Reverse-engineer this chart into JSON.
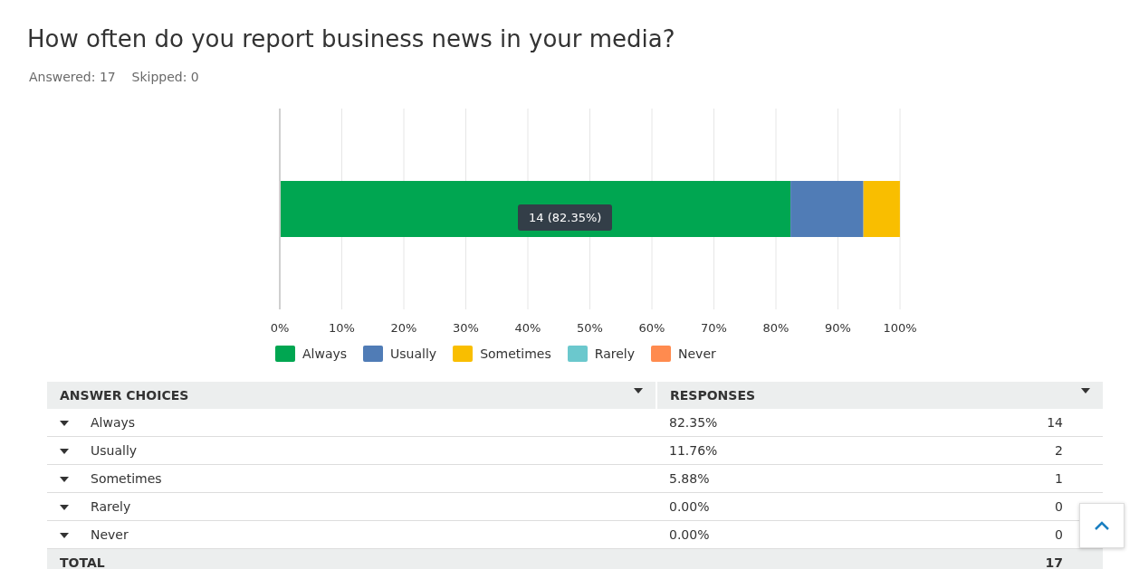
{
  "chart_data": {
    "type": "bar",
    "orientation": "horizontal",
    "stacked": true,
    "title": "How often do you report business news in your media?",
    "subtitle": "Answered: 17    Skipped: 0",
    "categories": [
      null
    ],
    "series": [
      {
        "name": "Always",
        "color": "#00a651",
        "values": [
          82.35
        ]
      },
      {
        "name": "Usually",
        "color": "#507cb6",
        "values": [
          11.76
        ]
      },
      {
        "name": "Sometimes",
        "color": "#f9be00",
        "values": [
          5.88
        ]
      },
      {
        "name": "Rarely",
        "color": "#6bc8cd",
        "values": [
          0
        ]
      },
      {
        "name": "Never",
        "color": "#ff8b4f",
        "values": [
          0
        ]
      }
    ],
    "xlim": [
      0,
      100
    ],
    "xticks": [
      {
        "value": 0,
        "label": "0%"
      },
      {
        "value": 10,
        "label": "10%"
      },
      {
        "value": 20,
        "label": "20%"
      },
      {
        "value": 30,
        "label": "30%"
      },
      {
        "value": 40,
        "label": "40%"
      },
      {
        "value": 50,
        "label": "50%"
      },
      {
        "value": 60,
        "label": "60%"
      },
      {
        "value": 70,
        "label": "70%"
      },
      {
        "value": 80,
        "label": "80%"
      },
      {
        "value": 90,
        "label": "90%"
      },
      {
        "value": 100,
        "label": "100%"
      }
    ],
    "grid": "x",
    "legend": "bottom",
    "annotations": [
      "14 (82.35%)",
      "ANSWER CHOICES",
      "RESPONSES",
      "82.35%",
      "14",
      "11.76%",
      "2",
      "5.88%",
      "1",
      "0.00%",
      "0",
      "0.00%",
      "0",
      "TOTAL",
      "17"
    ]
  }
}
